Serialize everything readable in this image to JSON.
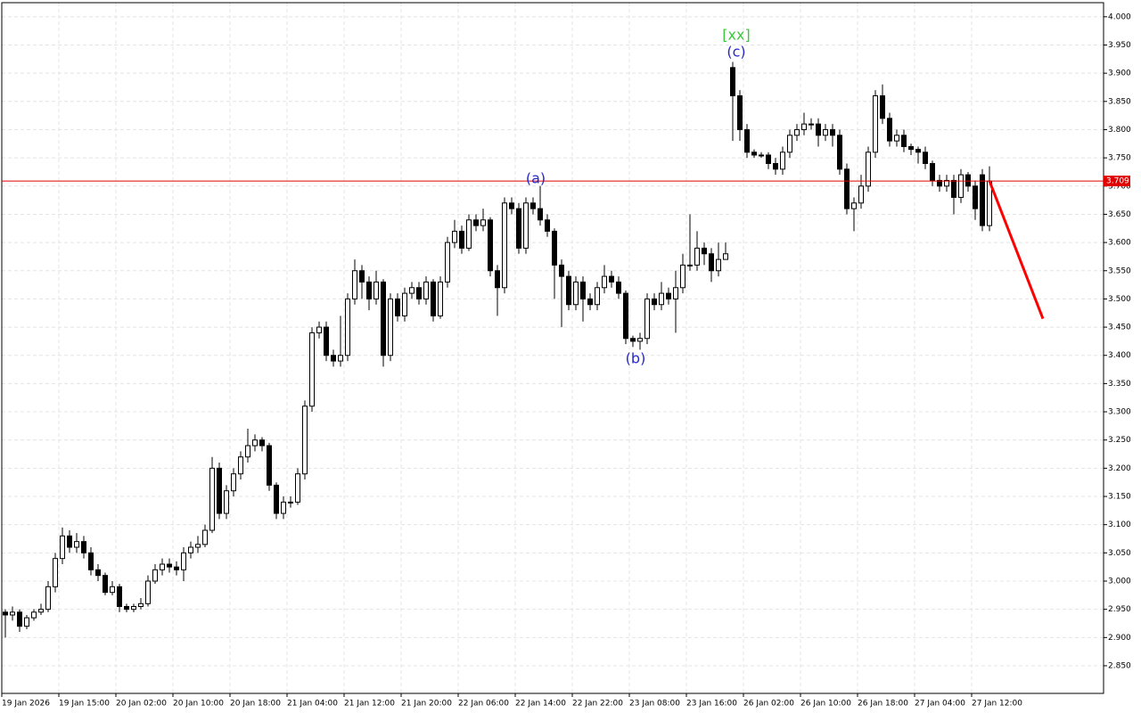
{
  "chart_data": {
    "type": "candlestick",
    "categories": [
      "19 Jan 2026",
      null,
      null,
      null,
      null,
      null,
      null,
      null,
      "19 Jan 15:00",
      null,
      null,
      null,
      null,
      null,
      null,
      null,
      "20 Jan 02:00",
      null,
      null,
      null,
      null,
      null,
      null,
      null,
      "20 Jan 10:00",
      null,
      null,
      null,
      null,
      null,
      null,
      null,
      "20 Jan 18:00",
      null,
      null,
      null,
      null,
      null,
      null,
      null,
      "21 Jan 04:00",
      null,
      null,
      null,
      null,
      null,
      null,
      null,
      "21 Jan 12:00",
      null,
      null,
      null,
      null,
      null,
      null,
      null,
      "21 Jan 20:00",
      null,
      null,
      null,
      null,
      null,
      null,
      null,
      "22 Jan 06:00",
      null,
      null,
      null,
      null,
      null,
      null,
      null,
      "22 Jan 14:00",
      null,
      null,
      null,
      null,
      null,
      null,
      null,
      "22 Jan 22:00",
      null,
      null,
      null,
      null,
      null,
      null,
      null,
      "23 Jan 08:00",
      null,
      null,
      null,
      null,
      null,
      null,
      null,
      "23 Jan 16:00",
      null,
      null,
      null,
      null,
      null,
      null,
      null,
      "26 Jan 02:00",
      null,
      null,
      null,
      null,
      null,
      null,
      null,
      "26 Jan 10:00",
      null,
      null,
      null,
      null,
      null,
      null,
      null,
      "26 Jan 18:00",
      null,
      null,
      null,
      null,
      null,
      null,
      null,
      "27 Jan 04:00",
      null,
      null,
      null,
      null,
      null,
      null,
      null,
      "27 Jan 12:00",
      null,
      null
    ],
    "open": [
      2.945,
      2.94,
      2.945,
      2.92,
      2.935,
      2.945,
      2.95,
      2.99,
      3.04,
      3.08,
      3.06,
      3.07,
      3.05,
      3.02,
      3.01,
      2.98,
      2.99,
      2.955,
      2.95,
      2.955,
      2.96,
      3.0,
      3.02,
      3.03,
      3.025,
      3.02,
      3.05,
      3.06,
      3.065,
      3.09,
      3.2,
      3.12,
      3.16,
      3.19,
      3.22,
      3.24,
      3.25,
      3.24,
      3.17,
      3.12,
      3.14,
      3.14,
      3.19,
      3.31,
      3.44,
      3.45,
      3.4,
      3.39,
      3.4,
      3.5,
      3.55,
      3.53,
      3.5,
      3.53,
      3.4,
      3.5,
      3.47,
      3.51,
      3.52,
      3.5,
      3.53,
      3.47,
      3.53,
      3.6,
      3.62,
      3.59,
      3.64,
      3.63,
      3.64,
      3.55,
      3.52,
      3.67,
      3.66,
      3.59,
      3.67,
      3.66,
      3.64,
      3.62,
      3.56,
      3.54,
      3.49,
      3.53,
      3.5,
      3.49,
      3.52,
      3.54,
      3.53,
      3.51,
      3.43,
      3.425,
      3.43,
      3.5,
      3.49,
      3.51,
      3.5,
      3.52,
      3.56,
      3.56,
      3.59,
      3.58,
      3.55,
      3.57,
      3.91,
      3.86,
      3.8,
      3.76,
      3.755,
      3.755,
      3.74,
      3.73,
      3.76,
      3.79,
      3.8,
      3.81,
      3.81,
      3.79,
      3.8,
      3.79,
      3.73,
      3.66,
      3.67,
      3.7,
      3.76,
      3.86,
      3.82,
      3.78,
      3.79,
      3.77,
      3.765,
      3.76,
      3.74,
      3.71,
      3.7,
      3.71,
      3.68,
      3.72,
      3.7,
      3.72,
      3.63
    ],
    "high": [
      2.95,
      2.955,
      2.95,
      2.94,
      2.95,
      2.96,
      3.0,
      3.05,
      3.095,
      3.09,
      3.085,
      3.08,
      3.06,
      3.03,
      3.015,
      3.0,
      2.995,
      2.96,
      2.96,
      2.97,
      3.01,
      3.03,
      3.04,
      3.04,
      3.035,
      3.06,
      3.07,
      3.08,
      3.1,
      3.22,
      3.21,
      3.17,
      3.2,
      3.23,
      3.27,
      3.26,
      3.255,
      3.245,
      3.175,
      3.15,
      3.15,
      3.2,
      3.32,
      3.45,
      3.46,
      3.46,
      3.41,
      3.47,
      3.51,
      3.57,
      3.56,
      3.54,
      3.55,
      3.535,
      3.51,
      3.51,
      3.52,
      3.53,
      3.53,
      3.54,
      3.535,
      3.54,
      3.61,
      3.64,
      3.63,
      3.65,
      3.65,
      3.66,
      3.645,
      3.56,
      3.68,
      3.68,
      3.67,
      3.68,
      3.68,
      3.7,
      3.65,
      3.625,
      3.57,
      3.55,
      3.54,
      3.54,
      3.51,
      3.53,
      3.56,
      3.55,
      3.54,
      3.515,
      3.435,
      3.44,
      3.51,
      3.51,
      3.53,
      3.52,
      3.55,
      3.58,
      3.65,
      3.62,
      3.6,
      3.59,
      3.6,
      3.6,
      3.92,
      3.87,
      3.81,
      3.765,
      3.76,
      3.76,
      3.75,
      3.77,
      3.8,
      3.81,
      3.83,
      3.82,
      3.82,
      3.81,
      3.81,
      3.8,
      3.74,
      3.68,
      3.72,
      3.77,
      3.87,
      3.88,
      3.83,
      3.8,
      3.8,
      3.775,
      3.77,
      3.77,
      3.745,
      3.72,
      3.72,
      3.72,
      3.73,
      3.725,
      3.71,
      3.73,
      3.735
    ],
    "low": [
      2.9,
      2.93,
      2.91,
      2.915,
      2.93,
      2.94,
      2.945,
      2.98,
      3.03,
      3.05,
      3.05,
      3.04,
      3.01,
      3.0,
      2.975,
      2.975,
      2.945,
      2.945,
      2.945,
      2.95,
      2.955,
      2.995,
      3.01,
      3.015,
      3.01,
      3.0,
      3.04,
      3.05,
      3.06,
      3.085,
      3.11,
      3.11,
      3.15,
      3.18,
      3.21,
      3.23,
      3.23,
      3.16,
      3.11,
      3.11,
      3.13,
      3.135,
      3.18,
      3.3,
      3.43,
      3.39,
      3.38,
      3.38,
      3.39,
      3.49,
      3.5,
      3.48,
      3.49,
      3.38,
      3.39,
      3.46,
      3.46,
      3.5,
      3.49,
      3.49,
      3.46,
      3.465,
      3.52,
      3.59,
      3.58,
      3.585,
      3.62,
      3.62,
      3.54,
      3.47,
      3.51,
      3.65,
      3.58,
      3.58,
      3.65,
      3.63,
      3.61,
      3.5,
      3.45,
      3.48,
      3.48,
      3.46,
      3.48,
      3.48,
      3.51,
      3.52,
      3.5,
      3.42,
      3.415,
      3.41,
      3.42,
      3.48,
      3.48,
      3.49,
      3.44,
      3.51,
      3.55,
      3.55,
      3.56,
      3.53,
      3.54,
      3.57,
      3.78,
      3.78,
      3.75,
      3.75,
      3.75,
      3.73,
      3.72,
      3.72,
      3.75,
      3.78,
      3.79,
      3.8,
      3.77,
      3.78,
      3.77,
      3.72,
      3.65,
      3.62,
      3.66,
      3.69,
      3.75,
      3.81,
      3.77,
      3.77,
      3.76,
      3.755,
      3.74,
      3.73,
      3.7,
      3.69,
      3.69,
      3.65,
      3.67,
      3.69,
      3.64,
      3.62,
      3.62
    ],
    "close": [
      2.94,
      2.945,
      2.92,
      2.935,
      2.945,
      2.95,
      2.99,
      3.04,
      3.08,
      3.06,
      3.07,
      3.05,
      3.02,
      3.01,
      2.98,
      2.99,
      2.955,
      2.95,
      2.955,
      2.96,
      3.0,
      3.02,
      3.03,
      3.025,
      3.02,
      3.05,
      3.06,
      3.065,
      3.09,
      3.2,
      3.12,
      3.16,
      3.19,
      3.22,
      3.24,
      3.25,
      3.24,
      3.17,
      3.12,
      3.14,
      3.14,
      3.19,
      3.31,
      3.44,
      3.45,
      3.4,
      3.39,
      3.4,
      3.5,
      3.55,
      3.53,
      3.5,
      3.53,
      3.4,
      3.5,
      3.47,
      3.51,
      3.52,
      3.5,
      3.53,
      3.47,
      3.53,
      3.6,
      3.62,
      3.59,
      3.64,
      3.63,
      3.64,
      3.55,
      3.52,
      3.67,
      3.66,
      3.59,
      3.67,
      3.66,
      3.64,
      3.62,
      3.56,
      3.54,
      3.49,
      3.53,
      3.5,
      3.49,
      3.52,
      3.54,
      3.53,
      3.51,
      3.43,
      3.425,
      3.43,
      3.5,
      3.49,
      3.51,
      3.5,
      3.52,
      3.56,
      3.56,
      3.59,
      3.58,
      3.55,
      3.57,
      3.58,
      3.86,
      3.8,
      3.76,
      3.755,
      3.755,
      3.74,
      3.73,
      3.76,
      3.79,
      3.8,
      3.81,
      3.81,
      3.79,
      3.8,
      3.79,
      3.73,
      3.66,
      3.67,
      3.7,
      3.76,
      3.86,
      3.82,
      3.78,
      3.79,
      3.77,
      3.765,
      3.76,
      3.74,
      3.71,
      3.7,
      3.71,
      3.68,
      3.72,
      3.7,
      3.66,
      3.63,
      3.709
    ],
    "ylim": [
      2.801,
      4.025
    ],
    "yticks": [
      {
        "value": 2.85,
        "label": "2.850"
      },
      {
        "value": 2.9,
        "label": "2.900"
      },
      {
        "value": 2.95,
        "label": "2.950"
      },
      {
        "value": 3.0,
        "label": "3.000"
      },
      {
        "value": 3.05,
        "label": "3.050"
      },
      {
        "value": 3.1,
        "label": "3.100"
      },
      {
        "value": 3.15,
        "label": "3.150"
      },
      {
        "value": 3.2,
        "label": "3.200"
      },
      {
        "value": 3.25,
        "label": "3.250"
      },
      {
        "value": 3.3,
        "label": "3.300"
      },
      {
        "value": 3.35,
        "label": "3.350"
      },
      {
        "value": 3.4,
        "label": "3.400"
      },
      {
        "value": 3.45,
        "label": "3.450"
      },
      {
        "value": 3.5,
        "label": "3.500"
      },
      {
        "value": 3.55,
        "label": "3.550"
      },
      {
        "value": 3.6,
        "label": "3.600"
      },
      {
        "value": 3.65,
        "label": "3.650"
      },
      {
        "value": 3.7,
        "label": "3.700"
      },
      {
        "value": 3.75,
        "label": "3.750"
      },
      {
        "value": 3.8,
        "label": "3.800"
      },
      {
        "value": 3.85,
        "label": "3.850"
      },
      {
        "value": 3.9,
        "label": "3.900"
      },
      {
        "value": 3.95,
        "label": "3.950"
      },
      {
        "value": 4.0,
        "label": "4.000"
      }
    ],
    "grid": true,
    "up_color": "#ffffff",
    "down_color": "#000000",
    "current_price": 3.709,
    "price_color": "#e00000",
    "forecast": {
      "start": 3.709,
      "end": 3.465,
      "color": "#ff0000"
    },
    "annotations": [
      {
        "text": "[xx]",
        "color": "#3cc83c"
      },
      {
        "text": "(c)",
        "color": "#2828c8"
      },
      {
        "text": "(a)",
        "color": "#2828c8"
      },
      {
        "text": "(b)",
        "color": "#2828c8"
      }
    ]
  }
}
